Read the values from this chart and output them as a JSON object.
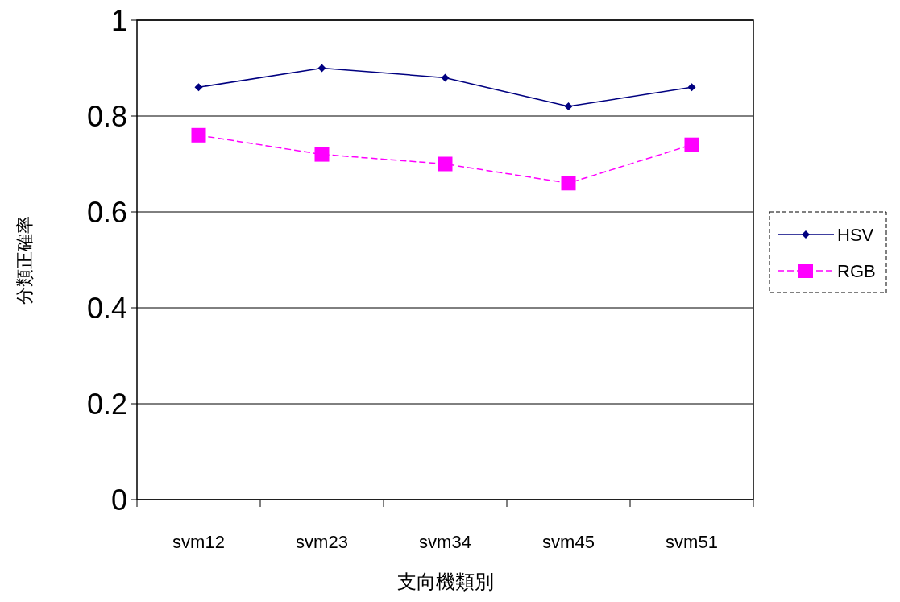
{
  "chart_data": {
    "type": "line",
    "xlabel": "支向機類別",
    "ylabel": "分類正確率",
    "categories": [
      "svm12",
      "svm23",
      "svm34",
      "svm45",
      "svm51"
    ],
    "series": [
      {
        "name": "HSV",
        "color": "#000080",
        "values": [
          0.86,
          0.9,
          0.88,
          0.82,
          0.86
        ],
        "marker": "diamond",
        "line_style": "solid"
      },
      {
        "name": "RGB",
        "color": "#ff00ff",
        "values": [
          0.76,
          0.72,
          0.7,
          0.66,
          0.74
        ],
        "marker": "square",
        "line_style": "dashed"
      }
    ],
    "ylim": [
      0,
      1
    ],
    "yticks": [
      0,
      0.2,
      0.4,
      0.6,
      0.8,
      1
    ],
    "grid": "y",
    "legend": "right"
  }
}
